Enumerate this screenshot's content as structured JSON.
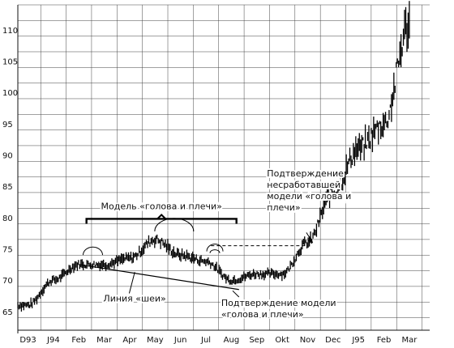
{
  "chart_data": {
    "type": "bar",
    "style": "price-bar (daily high-low)",
    "grid": true,
    "ylim": [
      62,
      114
    ],
    "yticks": [
      65,
      70,
      75,
      80,
      85,
      90,
      95,
      100,
      105,
      110
    ],
    "ytick_labels": [
      "65",
      "70",
      "75",
      "80",
      "85",
      "90",
      "95",
      "100",
      "105",
      "110"
    ],
    "xtick_labels": [
      "D93",
      "J94",
      "Feb",
      "Mar",
      "Apr",
      "May",
      "Jun",
      "Jul",
      "Aug",
      "Sep",
      "Okt",
      "Nov",
      "Dec",
      "J95",
      "Feb",
      "Mar"
    ],
    "series": [
      {
        "close_by_month": [
          {
            "month": "D93",
            "value": 66
          },
          {
            "month": "J94",
            "value": 70
          },
          {
            "month": "Feb",
            "value": 72.5
          },
          {
            "month": "Mar",
            "value": 72.5
          },
          {
            "month": "Apr",
            "value": 73.5
          },
          {
            "month": "May",
            "value": 76.5
          },
          {
            "month": "Jun",
            "value": 74
          },
          {
            "month": "Jul",
            "value": 73
          },
          {
            "month": "Aug",
            "value": 70
          },
          {
            "month": "Sep",
            "value": 71
          },
          {
            "month": "Okt",
            "value": 71
          },
          {
            "month": "Nov",
            "value": 76
          },
          {
            "month": "Dec",
            "value": 84
          },
          {
            "month": "J95",
            "value": 91
          },
          {
            "month": "Feb",
            "value": 95
          },
          {
            "month": "Mar",
            "value": 111
          }
        ]
      }
    ],
    "reference_lines": {
      "neckline_start": {
        "month": "Feb",
        "value": 72.5
      },
      "neckline_end": {
        "month": "Aug",
        "value": 68.5
      },
      "resistance_level": 75.5
    },
    "annotations": {
      "pattern_label": "Модель «голова и плечи»",
      "neckline_label": "Линия «шеи»",
      "confirmation_label": [
        "Подтверждение модели",
        "«голова и плечи»"
      ],
      "failed_confirmation_label": [
        "Подтверждение",
        "несработавшей",
        "модели «голова и",
        "плечи»"
      ]
    }
  }
}
